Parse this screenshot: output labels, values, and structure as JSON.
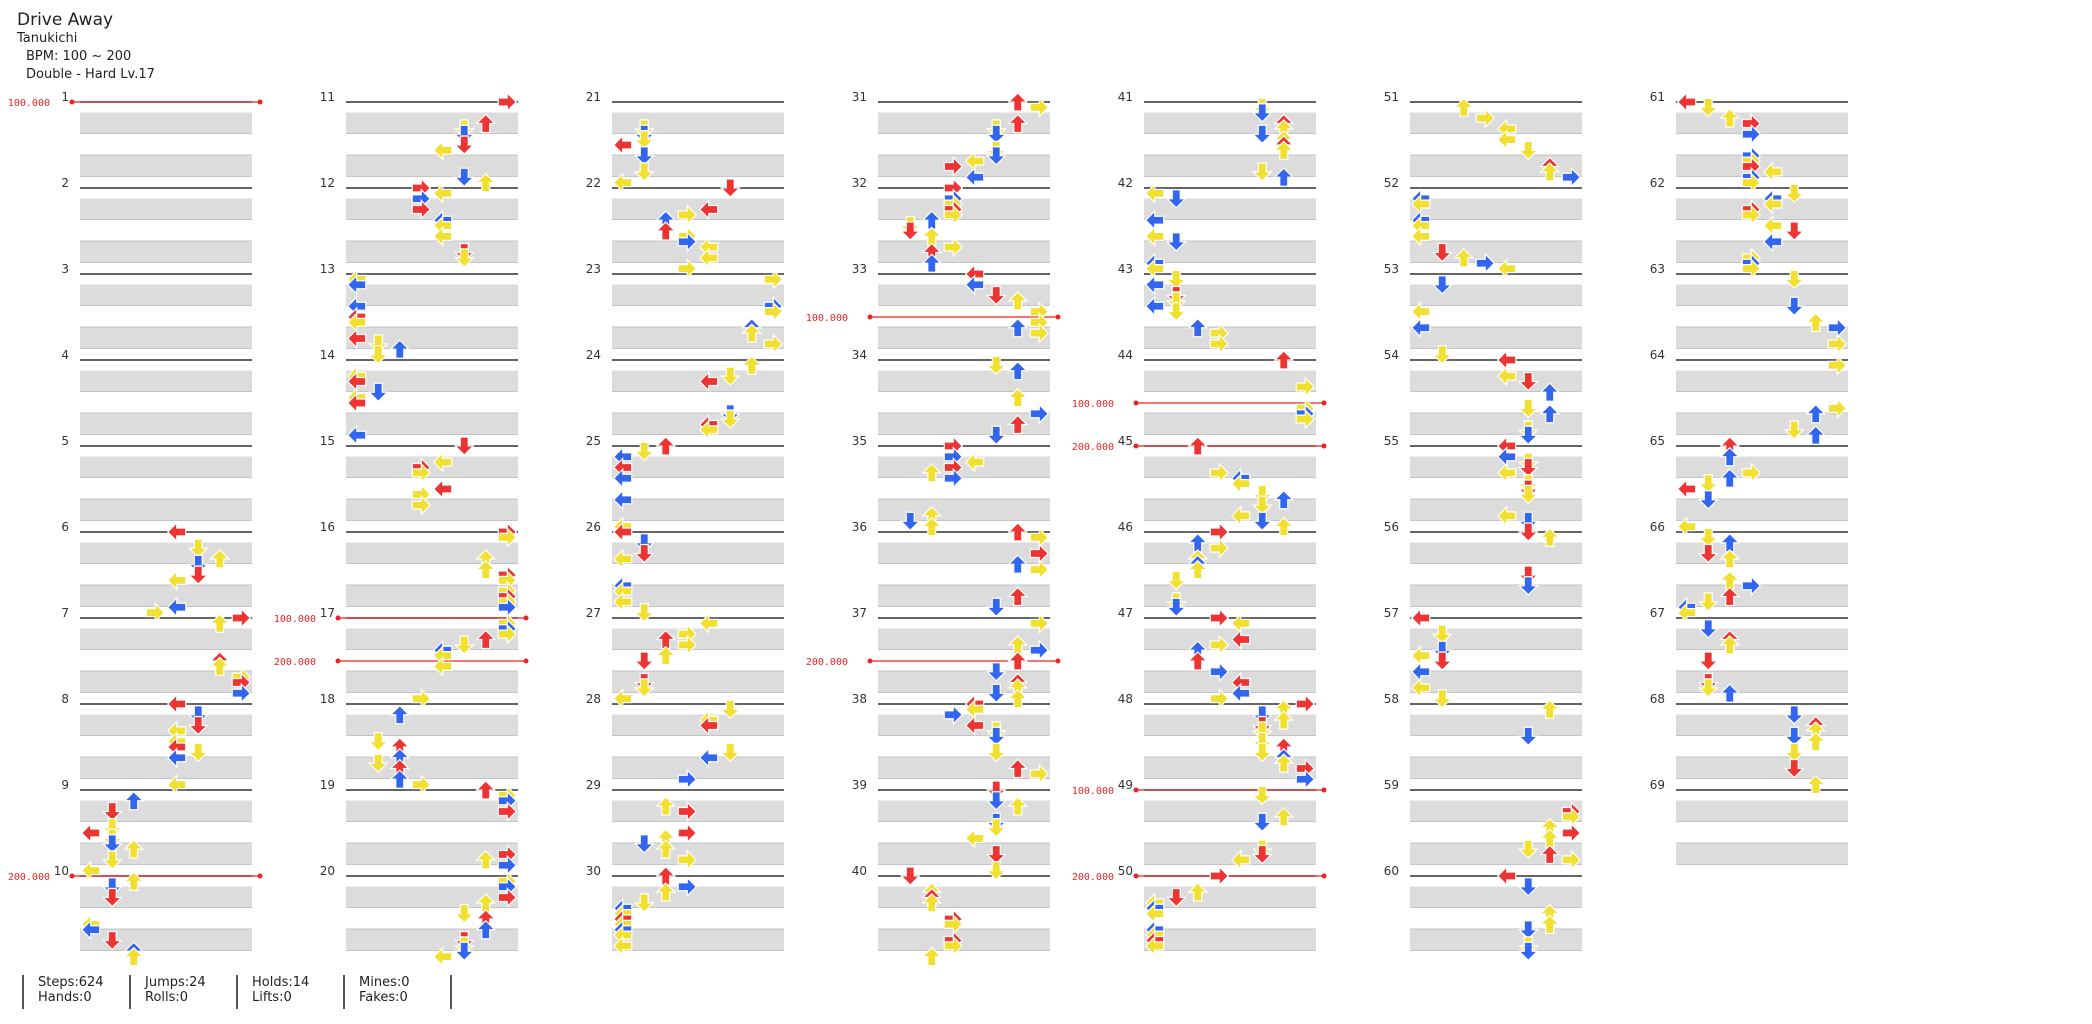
{
  "song": {
    "title": "Drive Away",
    "artist": "Tanukichi",
    "bpm_label": "BPM: 100 ~ 200",
    "difficulty_label": "Double - Hard Lv.17"
  },
  "chart": {
    "measure_count": 69,
    "measures_per_column": 10,
    "bpm_changes": [
      {
        "measure": 1,
        "beat": 0,
        "label": "100.000"
      },
      {
        "measure": 10,
        "beat": 0,
        "label": "200.000"
      },
      {
        "measure": 17,
        "beat": 0,
        "label": "100.000"
      },
      {
        "measure": 17,
        "beat": 2,
        "label": "200.000"
      },
      {
        "measure": 33,
        "beat": 2,
        "label": "100.000"
      },
      {
        "measure": 37,
        "beat": 2,
        "label": "200.000"
      },
      {
        "measure": 44,
        "beat": 2,
        "label": "100.000"
      },
      {
        "measure": 45,
        "beat": 0,
        "label": "200.000"
      },
      {
        "measure": 49,
        "beat": 0,
        "label": "100.000"
      },
      {
        "measure": 50,
        "beat": 0,
        "label": "200.000"
      }
    ],
    "colors": {
      "left": "#ee3333",
      "down": "#3366ee",
      "up": "#ee3333",
      "right": "#ee3333",
      "quarter": "#ee3333",
      "eighth": "#3366ee",
      "sixteenth": "#f2e030",
      "hold": "#7ed87e",
      "mine": "#dd44dd",
      "bpm_line": "#ee2222"
    }
  },
  "stats": {
    "steps": "Steps:624",
    "hands": "Hands:0",
    "jumps": "Jumps:24",
    "rolls": "Rolls:0",
    "holds": "Holds:14",
    "lifts": "Lifts:0",
    "mines": "Mines:0",
    "fakes": "Fakes:0"
  }
}
